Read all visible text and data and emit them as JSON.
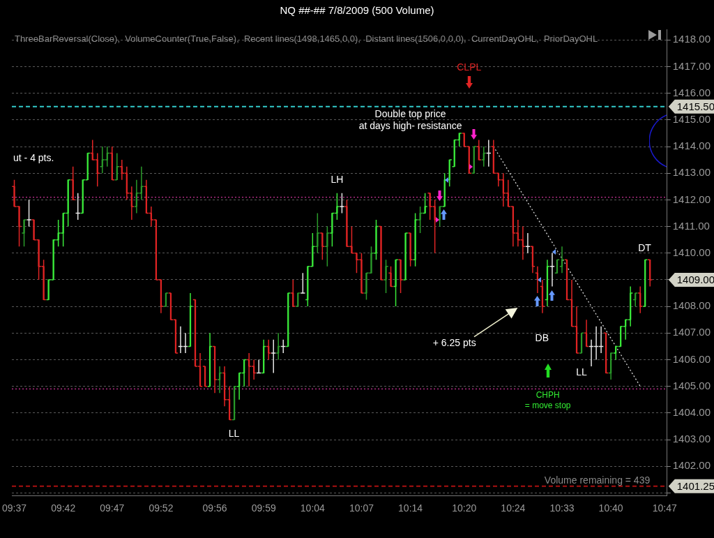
{
  "chart_data": {
    "type": "candlestick",
    "title": "NQ ##-##  7/8/2009 (500 Volume)",
    "subtitle": "ThreeBarReversal(Close),  VolumeCounter(True,False),  Recent lines(1498,1465,0,0),  Distant lines(1506,0,0,0),  CurrentDayOHL,  PriorDayOHL",
    "categories": [
      "09:37",
      null,
      null,
      null,
      null,
      null,
      null,
      null,
      null,
      null,
      "09:42",
      null,
      null,
      null,
      null,
      null,
      null,
      null,
      null,
      null,
      "09:47",
      null,
      null,
      null,
      null,
      null,
      null,
      null,
      null,
      null,
      "09:52",
      null,
      null,
      null,
      null,
      null,
      null,
      null,
      null,
      null,
      null,
      "09:56",
      null,
      null,
      null,
      null,
      null,
      null,
      null,
      null,
      null,
      "09:59",
      null,
      null,
      null,
      null,
      null,
      null,
      null,
      null,
      null,
      "10:04",
      null,
      null,
      null,
      null,
      null,
      null,
      null,
      null,
      null,
      "10:07",
      null,
      null,
      null,
      null,
      null,
      null,
      null,
      null,
      null,
      "10:14",
      null,
      null,
      null,
      null,
      null,
      null,
      null,
      null,
      null,
      null,
      "10:20",
      null,
      null,
      null,
      null,
      null,
      null,
      null,
      null,
      null,
      "10:24",
      null,
      null,
      null,
      null,
      null,
      null,
      null,
      null,
      null,
      "10:33",
      null,
      null,
      null,
      null,
      null,
      null,
      null,
      null,
      null,
      "10:40",
      null,
      null,
      null,
      null,
      null,
      null,
      null,
      null,
      null,
      null,
      "10:47"
    ],
    "ohlc": [
      [
        1412.5,
        1412.75,
        1411.75,
        1411.75
      ],
      [
        1411.75,
        1411.75,
        1410.25,
        1411.0
      ],
      [
        1410.75,
        1411.25,
        1410.25,
        1411.25
      ],
      [
        1411.25,
        1412.0,
        1411.0,
        1411.25
      ],
      [
        1411.25,
        1411.25,
        1410.5,
        1410.5
      ],
      [
        1410.5,
        1410.5,
        1409.0,
        1409.5
      ],
      [
        1409.5,
        1409.75,
        1408.25,
        1408.25
      ],
      [
        1408.25,
        1409.0,
        1408.25,
        1409.0
      ],
      [
        1409.0,
        1410.5,
        1409.0,
        1410.5
      ],
      [
        1410.5,
        1411.25,
        1410.25,
        1410.75
      ],
      [
        1410.75,
        1411.5,
        1410.25,
        1411.5
      ],
      [
        1411.5,
        1412.75,
        1411.0,
        1412.75
      ],
      [
        1412.75,
        1413.25,
        1412.0,
        1412.0
      ],
      [
        1411.5,
        1412.25,
        1411.25,
        1411.5
      ],
      [
        1411.5,
        1412.75,
        1411.5,
        1412.75
      ],
      [
        1412.75,
        1413.75,
        1412.75,
        1413.75
      ],
      [
        1413.75,
        1414.25,
        1413.5,
        1413.5
      ],
      [
        1413.5,
        1413.75,
        1412.5,
        1413.0
      ],
      [
        1413.25,
        1414.0,
        1413.0,
        1413.5
      ],
      [
        1413.5,
        1414.0,
        1413.25,
        1413.75
      ],
      [
        1413.75,
        1414.0,
        1412.75,
        1412.75
      ],
      [
        1412.75,
        1413.75,
        1412.75,
        1413.25
      ],
      [
        1413.25,
        1413.5,
        1412.75,
        1413.0
      ],
      [
        1413.0,
        1413.25,
        1412.0,
        1412.25
      ],
      [
        1412.25,
        1412.5,
        1411.25,
        1411.75
      ],
      [
        1411.75,
        1412.75,
        1411.5,
        1412.25
      ],
      [
        1412.25,
        1413.25,
        1412.0,
        1412.5
      ],
      [
        1412.5,
        1412.75,
        1411.5,
        1411.5
      ],
      [
        1411.5,
        1411.75,
        1411.0,
        1411.25
      ],
      [
        1411.25,
        1411.25,
        1409.0,
        1409.0
      ],
      [
        1409.0,
        1409.0,
        1407.75,
        1408.0
      ],
      [
        1408.0,
        1408.5,
        1408.0,
        1408.5
      ],
      [
        1408.5,
        1408.5,
        1407.5,
        1407.5
      ],
      [
        1407.5,
        1407.5,
        1406.25,
        1406.25
      ],
      [
        1406.5,
        1407.25,
        1406.25,
        1406.5
      ],
      [
        1406.5,
        1407.0,
        1406.25,
        1406.5
      ],
      [
        1406.5,
        1408.5,
        1406.5,
        1408.0
      ],
      [
        1408.25,
        1408.25,
        1405.75,
        1405.75
      ],
      [
        1405.75,
        1406.25,
        1405.0,
        1405.0
      ],
      [
        1405.75,
        1405.75,
        1405.0,
        1405.0
      ],
      [
        1405.0,
        1407.0,
        1405.0,
        1406.5
      ],
      [
        1406.5,
        1406.5,
        1404.75,
        1405.25
      ],
      [
        1405.25,
        1405.75,
        1404.75,
        1405.5
      ],
      [
        1405.5,
        1405.75,
        1404.25,
        1404.5
      ],
      [
        1404.5,
        1405.0,
        1403.75,
        1403.75
      ],
      [
        1403.75,
        1405.0,
        1403.75,
        1405.0
      ],
      [
        1405.0,
        1405.5,
        1404.5,
        1405.5
      ],
      [
        1405.5,
        1406.0,
        1405.0,
        1406.0
      ],
      [
        1406.0,
        1406.25,
        1405.0,
        1405.75
      ],
      [
        1405.75,
        1406.0,
        1405.25,
        1405.5
      ],
      [
        1405.5,
        1406.0,
        1405.5,
        1405.5
      ],
      [
        1405.5,
        1406.75,
        1405.5,
        1406.5
      ],
      [
        1406.5,
        1406.75,
        1406.0,
        1406.25
      ],
      [
        1406.25,
        1406.75,
        1405.5,
        1406.25
      ],
      [
        1406.25,
        1407.0,
        1406.0,
        1406.5
      ],
      [
        1406.5,
        1406.75,
        1406.25,
        1406.5
      ],
      [
        1406.5,
        1408.5,
        1406.5,
        1408.5
      ],
      [
        1408.5,
        1409.0,
        1408.0,
        1408.0
      ],
      [
        1408.0,
        1408.5,
        1408.0,
        1408.5
      ],
      [
        1408.5,
        1409.25,
        1408.5,
        1408.5
      ],
      [
        1408.25,
        1409.5,
        1408.0,
        1409.5
      ],
      [
        1409.5,
        1410.75,
        1409.5,
        1410.25
      ],
      [
        1410.25,
        1411.5,
        1410.0,
        1410.75
      ],
      [
        1410.75,
        1410.75,
        1409.75,
        1410.25
      ],
      [
        1410.25,
        1411.0,
        1409.5,
        1410.75
      ],
      [
        1410.75,
        1411.5,
        1410.25,
        1411.5
      ],
      [
        1411.5,
        1412.25,
        1411.25,
        1411.75
      ],
      [
        1411.75,
        1412.25,
        1411.5,
        1411.75
      ],
      [
        1411.75,
        1412.0,
        1410.25,
        1410.25
      ],
      [
        1410.25,
        1411.0,
        1410.0,
        1410.0
      ],
      [
        1410.0,
        1410.0,
        1409.25,
        1409.75
      ],
      [
        1409.75,
        1410.0,
        1408.5,
        1408.5
      ],
      [
        1408.5,
        1409.25,
        1408.25,
        1409.25
      ],
      [
        1409.25,
        1410.25,
        1409.25,
        1410.0
      ],
      [
        1410.0,
        1411.25,
        1409.75,
        1411.0
      ],
      [
        1411.0,
        1411.0,
        1409.0,
        1409.0
      ],
      [
        1409.0,
        1409.75,
        1408.5,
        1409.5
      ],
      [
        1409.25,
        1409.5,
        1408.75,
        1408.75
      ],
      [
        1408.75,
        1409.75,
        1408.0,
        1409.75
      ],
      [
        1409.75,
        1409.75,
        1408.5,
        1409.0
      ],
      [
        1409.0,
        1410.75,
        1409.0,
        1410.75
      ],
      [
        1410.75,
        1410.75,
        1409.5,
        1409.75
      ],
      [
        1409.75,
        1411.5,
        1409.5,
        1411.25
      ],
      [
        1411.25,
        1411.75,
        1410.75,
        1411.5
      ],
      [
        1411.5,
        1412.25,
        1411.5,
        1411.75
      ],
      [
        1412.25,
        1412.25,
        1411.25,
        1411.75
      ],
      [
        1411.75,
        1412.0,
        1410.0,
        1411.25
      ],
      [
        1411.25,
        1411.75,
        1411.0,
        1411.75
      ],
      [
        1411.75,
        1413.0,
        1411.75,
        1412.75
      ],
      [
        1412.75,
        1413.5,
        1412.5,
        1413.5
      ],
      [
        1413.25,
        1414.25,
        1413.25,
        1414.25
      ],
      [
        1414.25,
        1414.5,
        1414.0,
        1414.5
      ],
      [
        1414.5,
        1414.5,
        1414.0,
        1414.0
      ],
      [
        1414.0,
        1414.0,
        1413.0,
        1413.0
      ],
      [
        1413.0,
        1414.0,
        1413.0,
        1414.0
      ],
      [
        1414.0,
        1414.25,
        1413.5,
        1413.5
      ],
      [
        1413.5,
        1414.0,
        1413.25,
        1413.75
      ],
      [
        1413.75,
        1414.25,
        1413.25,
        1413.75
      ],
      [
        1414.0,
        1414.25,
        1413.0,
        1413.0
      ],
      [
        1413.0,
        1413.0,
        1412.5,
        1412.75
      ],
      [
        1412.75,
        1413.0,
        1411.75,
        1412.25
      ],
      [
        1412.25,
        1412.75,
        1411.75,
        1411.75
      ],
      [
        1411.75,
        1411.75,
        1410.25,
        1410.75
      ],
      [
        1410.75,
        1411.25,
        1410.25,
        1410.5
      ],
      [
        1410.5,
        1411.0,
        1409.75,
        1410.25
      ],
      [
        1410.25,
        1410.75,
        1410.0,
        1410.25
      ],
      [
        1410.25,
        1410.25,
        1409.25,
        1409.5
      ],
      [
        1409.25,
        1409.5,
        1408.5,
        1409.0
      ],
      [
        1408.75,
        1409.0,
        1407.75,
        1408.0
      ],
      [
        1408.25,
        1409.75,
        1408.0,
        1409.5
      ],
      [
        1409.5,
        1410.0,
        1408.75,
        1409.5
      ],
      [
        1409.25,
        1409.75,
        1409.25,
        1409.75
      ],
      [
        1409.5,
        1410.25,
        1409.25,
        1409.75
      ],
      [
        1409.75,
        1409.75,
        1408.25,
        1408.25
      ],
      [
        1408.25,
        1409.0,
        1407.25,
        1407.25
      ],
      [
        1407.25,
        1408.0,
        1406.25,
        1406.25
      ],
      [
        1406.25,
        1407.0,
        1406.25,
        1407.0
      ],
      [
        1407.0,
        1407.5,
        1406.5,
        1406.5
      ],
      [
        1406.5,
        1406.75,
        1405.75,
        1406.5
      ],
      [
        1406.5,
        1407.25,
        1406.0,
        1406.5
      ],
      [
        1406.5,
        1407.25,
        1406.25,
        1406.5
      ],
      [
        1407.0,
        1407.0,
        1405.5,
        1405.5
      ],
      [
        1405.5,
        1406.25,
        1405.25,
        1406.25
      ],
      [
        1406.25,
        1406.5,
        1406.0,
        1406.5
      ],
      [
        1406.5,
        1407.25,
        1406.5,
        1407.25
      ],
      [
        1407.25,
        1407.5,
        1406.75,
        1407.5
      ],
      [
        1407.5,
        1408.75,
        1407.25,
        1408.5
      ],
      [
        1408.25,
        1408.5,
        1408.0,
        1408.5
      ],
      [
        1408.5,
        1408.75,
        1407.75,
        1408.0
      ],
      [
        1408.0,
        1409.75,
        1408.0,
        1409.75
      ],
      [
        1409.75,
        1409.75,
        1408.75,
        1409.0
      ],
      null,
      null,
      null
    ],
    "colors": [
      "#e02424",
      "#e02424",
      "#2a9a2a",
      "#e6e6e6",
      "#e02424",
      "#e02424",
      "#e02424",
      "#3aea3a",
      "#3aea3a",
      "#3aea3a",
      "#3aea3a",
      "#3aea3a",
      "#e02424",
      "#e6e6e6",
      "#3aea3a",
      "#3aea3a",
      "#e02424",
      "#e02424",
      "#2a9a2a",
      "#2a9a2a",
      "#e02424",
      "#2a9a2a",
      "#e02424",
      "#e02424",
      "#e02424",
      "#2a9a2a",
      "#2a9a2a",
      "#e02424",
      "#e02424",
      "#e02424",
      "#e02424",
      "#2a9a2a",
      "#e02424",
      "#e02424",
      "#e6e6e6",
      "#e6e6e6",
      "#3aea3a",
      "#e02424",
      "#e02424",
      "#e02424",
      "#3aea3a",
      "#e02424",
      "#2a9a2a",
      "#e02424",
      "#e02424",
      "#2a9a2a",
      "#3aea3a",
      "#3aea3a",
      "#e02424",
      "#e02424",
      "#e6e6e6",
      "#3aea3a",
      "#e02424",
      "#e6e6e6",
      "#2a9a2a",
      "#e6e6e6",
      "#3aea3a",
      "#e02424",
      "#2a9a2a",
      "#e6e6e6",
      "#3aea3a",
      "#3aea3a",
      "#2a9a2a",
      "#e02424",
      "#2a9a2a",
      "#3aea3a",
      "#3aea3a",
      "#e6e6e6",
      "#e02424",
      "#e02424",
      "#e02424",
      "#e02424",
      "#2a9a2a",
      "#2a9a2a",
      "#3aea3a",
      "#e02424",
      "#2a9a2a",
      "#e02424",
      "#3aea3a",
      "#e02424",
      "#3aea3a",
      "#e02424",
      "#3aea3a",
      "#2a9a2a",
      "#3aea3a",
      "#e02424",
      "#e02424",
      "#2a9a2a",
      "#3aea3a",
      "#3aea3a",
      "#3aea3a",
      "#3aea3a",
      "#e02424",
      "#e02424",
      "#2a9a2a",
      "#e02424",
      "#2a9a2a",
      "#e6e6e6",
      "#e02424",
      "#e02424",
      "#e02424",
      "#e02424",
      "#e02424",
      "#e02424",
      "#e02424",
      "#e6e6e6",
      "#e02424",
      "#e02424",
      "#e02424",
      "#3aea3a",
      "#e6e6e6",
      "#2a9a2a",
      "#2a9a2a",
      "#e02424",
      "#e02424",
      "#e02424",
      "#2a9a2a",
      "#e02424",
      "#e6e6e6",
      "#e6e6e6",
      "#e6e6e6",
      "#e02424",
      "#2a9a2a",
      "#3aea3a",
      "#3aea3a",
      "#3aea3a",
      "#3aea3a",
      "#2a9a2a",
      "#e02424",
      "#3aea3a",
      "#e02424",
      null,
      null,
      null
    ],
    "series": [
      {
        "type": "line",
        "color": "#dddddd",
        "line_style": "dotted",
        "values": [
          null,
          null,
          null,
          null,
          null,
          null,
          null,
          null,
          null,
          null,
          null,
          null,
          null,
          null,
          null,
          null,
          null,
          null,
          null,
          null,
          null,
          null,
          null,
          null,
          null,
          null,
          null,
          null,
          null,
          null,
          null,
          null,
          null,
          null,
          null,
          null,
          null,
          null,
          null,
          null,
          null,
          null,
          null,
          null,
          null,
          null,
          null,
          null,
          null,
          null,
          null,
          null,
          null,
          null,
          null,
          null,
          null,
          null,
          null,
          null,
          null,
          null,
          null,
          null,
          null,
          null,
          null,
          null,
          null,
          null,
          null,
          null,
          null,
          null,
          null,
          null,
          null,
          null,
          null,
          null,
          null,
          null,
          null,
          null,
          null,
          null,
          null,
          null,
          null,
          null,
          null,
          null,
          null,
          null,
          null,
          null,
          null,
          null,
          1414.0,
          null,
          null,
          null,
          null,
          null,
          null,
          null,
          null,
          null,
          null,
          null,
          null,
          null,
          null,
          null,
          null,
          null,
          null,
          null,
          null,
          null,
          null,
          null,
          null,
          null,
          null,
          null,
          null,
          null,
          1405.0,
          null,
          null,
          null,
          null,
          null
        ]
      }
    ],
    "ylim": [
      1400.9,
      1418.4
    ],
    "yticks": [
      {
        "value": 1401,
        "label": null
      },
      {
        "value": 1402,
        "label": "1402.00"
      },
      {
        "value": 1403,
        "label": "1403.00"
      },
      {
        "value": 1404,
        "label": "1404.00"
      },
      {
        "value": 1405,
        "label": "1405.00"
      },
      {
        "value": 1406,
        "label": "1406.00"
      },
      {
        "value": 1407,
        "label": "1407.00"
      },
      {
        "value": 1408,
        "label": "1408.00"
      },
      {
        "value": 1409,
        "label": null
      },
      {
        "value": 1410,
        "label": "1410.00"
      },
      {
        "value": 1411,
        "label": "1411.00"
      },
      {
        "value": 1412,
        "label": "1412.00"
      },
      {
        "value": 1413,
        "label": "1413.00"
      },
      {
        "value": 1414,
        "label": "1414.00"
      },
      {
        "value": 1415,
        "label": "1415.00"
      },
      {
        "value": 1416,
        "label": "1416.00"
      },
      {
        "value": 1417,
        "label": "1417.00"
      },
      {
        "value": 1418,
        "label": "1418.00"
      }
    ],
    "grid": "y",
    "ref_lines": [
      {
        "axis": "y",
        "value": 1415.5,
        "label": "1415.50",
        "color": "#33cccc",
        "line_style": "dashed"
      },
      {
        "axis": "y",
        "value": 1412.1,
        "color": "#cc3399",
        "line_style": "dotted"
      },
      {
        "axis": "y",
        "value": 1404.9,
        "color": "#cc3399",
        "line_style": "dotted"
      },
      {
        "axis": "y",
        "value": 1401.25,
        "label": "1401.25",
        "color": "#aa1111",
        "line_style": "dashed"
      }
    ],
    "annotations": [
      "ut - 4 pts.",
      "LH",
      "Double top price\nat days high- resistance",
      "CLPL",
      "+ 6.25 pts",
      "DB",
      "LL",
      "LL",
      "CHPH\n= move stop",
      "DT",
      "Volume remaining = 439",
      "1409.00"
    ]
  }
}
